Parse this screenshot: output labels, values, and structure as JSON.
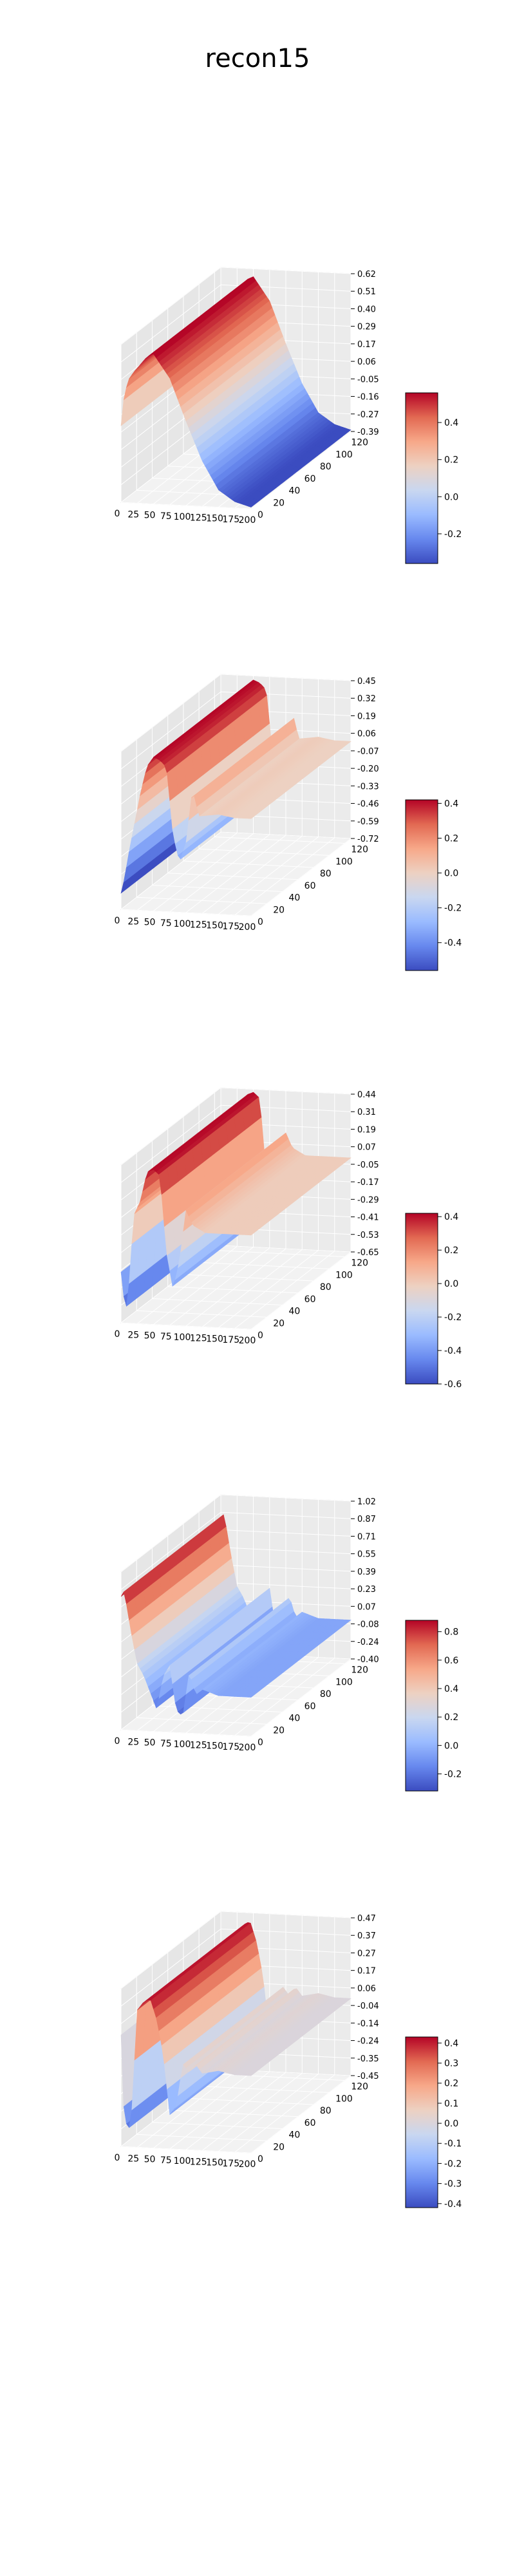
{
  "figure": {
    "title": "recon15"
  },
  "colormap": {
    "name": "coolwarm",
    "stops": [
      "#3b4cc0",
      "#6788ee",
      "#9abbff",
      "#c9d7f0",
      "#edd1c2",
      "#f7a889",
      "#e26952",
      "#b40426"
    ]
  },
  "chart_data": [
    {
      "type": "surface3d",
      "title": "",
      "x_ticks": [
        "0",
        "25",
        "50",
        "75",
        "100",
        "125",
        "150",
        "175",
        "200"
      ],
      "y_ticks": [
        "0",
        "20",
        "40",
        "60",
        "80",
        "100",
        "120"
      ],
      "z_ticks": [
        "-0.39",
        "-0.27",
        "-0.16",
        "-0.05",
        "0.06",
        "0.17",
        "0.29",
        "0.40",
        "0.51",
        "0.62"
      ],
      "zlim": [
        -0.39,
        0.62
      ],
      "colorbar": {
        "ticks": [
          "-0.2",
          "0.0",
          "0.2",
          "0.4"
        ],
        "range": [
          -0.36,
          0.56
        ]
      },
      "profile": {
        "x": [
          0,
          5,
          12,
          20,
          30,
          40,
          50,
          75,
          100,
          125,
          150,
          175,
          200
        ],
        "z": [
          0.1,
          0.3,
          0.4,
          0.45,
          0.5,
          0.55,
          0.57,
          0.42,
          0.15,
          -0.1,
          -0.28,
          -0.35,
          -0.38
        ]
      }
    },
    {
      "type": "surface3d",
      "title": "",
      "x_ticks": [
        "0",
        "25",
        "50",
        "75",
        "100",
        "125",
        "150",
        "175",
        "200"
      ],
      "y_ticks": [
        "0",
        "20",
        "40",
        "60",
        "80",
        "100",
        "120"
      ],
      "z_ticks": [
        "-0.72",
        "-0.59",
        "-0.46",
        "-0.33",
        "-0.20",
        "-0.07",
        "0.06",
        "0.19",
        "0.32",
        "0.45"
      ],
      "zlim": [
        -0.72,
        0.45
      ],
      "colorbar": {
        "ticks": [
          "-0.4",
          "-0.2",
          "0.0",
          "0.2",
          "0.4"
        ],
        "range": [
          -0.56,
          0.42
        ]
      },
      "profile": {
        "x": [
          0,
          5,
          12,
          20,
          30,
          40,
          50,
          60,
          70,
          80,
          90,
          100,
          110,
          120,
          150,
          175,
          200
        ],
        "z": [
          -0.6,
          -0.5,
          -0.3,
          -0.1,
          0.15,
          0.35,
          0.42,
          0.4,
          0.35,
          -0.15,
          -0.35,
          -0.2,
          0.2,
          0.0,
          0.02,
          0.0,
          0.0
        ]
      }
    },
    {
      "type": "surface3d",
      "title": "",
      "x_ticks": [
        "0",
        "25",
        "50",
        "75",
        "100",
        "125",
        "150",
        "175",
        "200"
      ],
      "y_ticks": [
        "0",
        "20",
        "40",
        "60",
        "80",
        "100",
        "120"
      ],
      "z_ticks": [
        "-0.65",
        "-0.53",
        "-0.41",
        "-0.29",
        "-0.17",
        "-0.05",
        "0.07",
        "0.19",
        "0.31",
        "0.44"
      ],
      "zlim": [
        -0.65,
        0.44
      ],
      "colorbar": {
        "ticks": [
          "-0.6",
          "-0.4",
          "-0.2",
          "0.0",
          "0.2",
          "0.4"
        ],
        "range": [
          -0.6,
          0.42
        ]
      },
      "profile": {
        "x": [
          0,
          5,
          10,
          15,
          20,
          30,
          40,
          50,
          60,
          70,
          80,
          90,
          100,
          110,
          130,
          150,
          200
        ],
        "z": [
          -0.3,
          -0.5,
          -0.55,
          -0.2,
          0.1,
          0.2,
          0.4,
          0.42,
          0.38,
          -0.15,
          -0.4,
          -0.2,
          0.15,
          0.05,
          0.0,
          0.0,
          0.0
        ]
      }
    },
    {
      "type": "surface3d",
      "title": "",
      "x_ticks": [
        "0",
        "25",
        "50",
        "75",
        "100",
        "125",
        "150",
        "175",
        "200"
      ],
      "y_ticks": [
        "0",
        "20",
        "40",
        "60",
        "80",
        "100",
        "120"
      ],
      "z_ticks": [
        "-0.40",
        "-0.24",
        "-0.08",
        "0.07",
        "0.23",
        "0.39",
        "0.55",
        "0.71",
        "0.87",
        "1.02"
      ],
      "zlim": [
        -0.4,
        1.02
      ],
      "colorbar": {
        "ticks": [
          "-0.2",
          "0.0",
          "0.2",
          "0.4",
          "0.6",
          "0.8"
        ],
        "range": [
          -0.32,
          0.88
        ]
      },
      "profile": {
        "x": [
          0,
          5,
          15,
          25,
          35,
          45,
          55,
          65,
          75,
          85,
          95,
          105,
          115,
          125,
          150,
          175,
          200
        ],
        "z": [
          0.8,
          0.85,
          0.5,
          0.2,
          0.1,
          -0.05,
          -0.2,
          0.1,
          0.2,
          -0.2,
          -0.25,
          0.15,
          -0.05,
          0.0,
          -0.05,
          -0.05,
          -0.05
        ]
      }
    },
    {
      "type": "surface3d",
      "title": "",
      "x_ticks": [
        "0",
        "25",
        "50",
        "75",
        "100",
        "125",
        "150",
        "175",
        "200"
      ],
      "y_ticks": [
        "0",
        "20",
        "40",
        "60",
        "80",
        "100",
        "120"
      ],
      "z_ticks": [
        "-0.45",
        "-0.35",
        "-0.24",
        "-0.14",
        "-0.04",
        "0.06",
        "0.17",
        "0.27",
        "0.37",
        "0.47"
      ],
      "zlim": [
        -0.45,
        0.47
      ],
      "colorbar": {
        "ticks": [
          "-0.4",
          "-0.3",
          "-0.2",
          "-0.1",
          "0.0",
          "0.1",
          "0.2",
          "0.3",
          "0.4"
        ],
        "range": [
          -0.42,
          0.43
        ]
      },
      "profile": {
        "x": [
          0,
          5,
          15,
          25,
          35,
          45,
          55,
          65,
          75,
          85,
          95,
          105,
          115,
          125,
          150,
          175,
          200
        ],
        "z": [
          0.2,
          -0.3,
          -0.35,
          0.35,
          0.4,
          0.42,
          0.3,
          0.1,
          -0.25,
          -0.2,
          0.05,
          0.0,
          0.05,
          0.0,
          0.02,
          0.0,
          0.0
        ]
      }
    }
  ]
}
